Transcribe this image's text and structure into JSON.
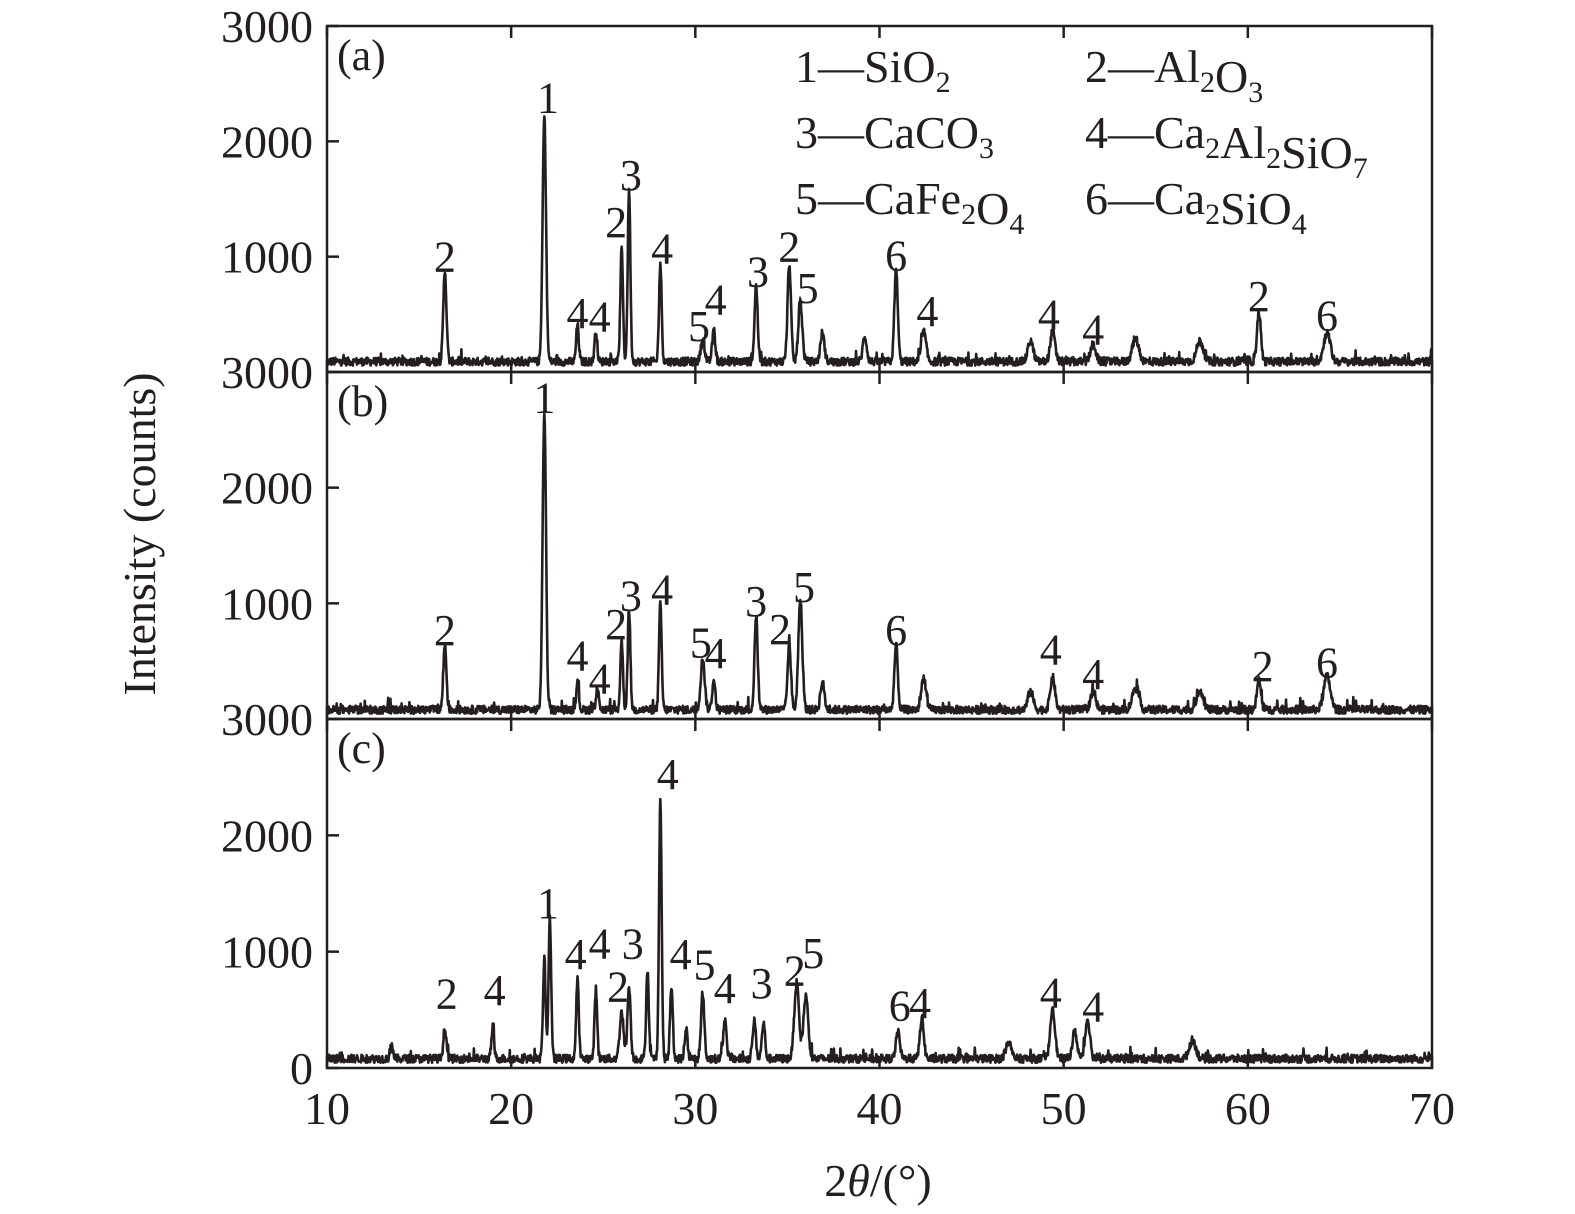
{
  "chart_data": {
    "type": "line",
    "xlabel_prefix": "2",
    "xlabel_theta": "θ",
    "xlabel_suffix": "/(°)",
    "ylabel": "Intensity (counts)",
    "xlim": [
      10,
      70
    ],
    "xticks": [
      "10",
      "20",
      "30",
      "40",
      "50",
      "60",
      "70"
    ],
    "legend": [
      {
        "num": "1",
        "dash": "—",
        "parts": [
          {
            "t": "SiO"
          },
          {
            "t": "2",
            "sub": true
          }
        ]
      },
      {
        "num": "2",
        "dash": "—",
        "parts": [
          {
            "t": "Al"
          },
          {
            "t": "2",
            "sub": true
          },
          {
            "t": "O"
          },
          {
            "t": "3",
            "sub": true
          }
        ]
      },
      {
        "num": "3",
        "dash": "—",
        "parts": [
          {
            "t": "CaCO"
          },
          {
            "t": "3",
            "sub": true
          }
        ]
      },
      {
        "num": "4",
        "dash": "—",
        "parts": [
          {
            "t": "Ca"
          },
          {
            "t": "2",
            "sub": true
          },
          {
            "t": "Al"
          },
          {
            "t": "2",
            "sub": true
          },
          {
            "t": "SiO"
          },
          {
            "t": "7",
            "sub": true
          }
        ]
      },
      {
        "num": "5",
        "dash": "—",
        "parts": [
          {
            "t": "CaFe"
          },
          {
            "t": "2",
            "sub": true
          },
          {
            "t": "O"
          },
          {
            "t": "4",
            "sub": true
          }
        ]
      },
      {
        "num": "6",
        "dash": "—",
        "parts": [
          {
            "t": "Ca"
          },
          {
            "t": "2",
            "sub": true
          },
          {
            "t": "SiO"
          },
          {
            "t": "4",
            "sub": true
          }
        ]
      }
    ],
    "panels": [
      {
        "label": "(a)",
        "ylim": [
          0,
          3000
        ],
        "yticks": [
          {
            "value": 1000,
            "label": "1000"
          },
          {
            "value": 2000,
            "label": "2000"
          },
          {
            "value": 3000,
            "label": "3000"
          }
        ],
        "baseline": 90,
        "peaks": [
          {
            "x": 16.4,
            "y": 790,
            "w": 0.12
          },
          {
            "x": 21.8,
            "y": 2130,
            "w": 0.13
          },
          {
            "x": 23.6,
            "y": 320,
            "w": 0.1
          },
          {
            "x": 24.6,
            "y": 270,
            "w": 0.1
          },
          {
            "x": 26.0,
            "y": 980,
            "w": 0.1
          },
          {
            "x": 26.4,
            "y": 1500,
            "w": 0.1
          },
          {
            "x": 28.1,
            "y": 850,
            "w": 0.1
          },
          {
            "x": 30.4,
            "y": 180,
            "w": 0.15
          },
          {
            "x": 31.0,
            "y": 260,
            "w": 0.12
          },
          {
            "x": 33.3,
            "y": 660,
            "w": 0.12
          },
          {
            "x": 35.1,
            "y": 850,
            "w": 0.13
          },
          {
            "x": 35.7,
            "y": 520,
            "w": 0.15
          },
          {
            "x": 36.9,
            "y": 250,
            "w": 0.15
          },
          {
            "x": 39.2,
            "y": 220,
            "w": 0.15
          },
          {
            "x": 40.9,
            "y": 800,
            "w": 0.13
          },
          {
            "x": 42.4,
            "y": 260,
            "w": 0.18
          },
          {
            "x": 48.2,
            "y": 180,
            "w": 0.2
          },
          {
            "x": 49.4,
            "y": 260,
            "w": 0.18
          },
          {
            "x": 51.6,
            "y": 150,
            "w": 0.2
          },
          {
            "x": 53.9,
            "y": 200,
            "w": 0.25
          },
          {
            "x": 57.4,
            "y": 180,
            "w": 0.25
          },
          {
            "x": 60.6,
            "y": 430,
            "w": 0.15
          },
          {
            "x": 64.3,
            "y": 250,
            "w": 0.25
          }
        ],
        "annotations": [
          {
            "text": "2",
            "x": 16.4,
            "y": 870
          },
          {
            "text": "1",
            "x": 22.0,
            "y": 2250
          },
          {
            "text": "4",
            "x": 23.6,
            "y": 380
          },
          {
            "text": "4",
            "x": 24.8,
            "y": 350
          },
          {
            "text": "2",
            "x": 25.7,
            "y": 1170
          },
          {
            "text": "3",
            "x": 26.5,
            "y": 1580
          },
          {
            "text": "4",
            "x": 28.2,
            "y": 940
          },
          {
            "text": "5",
            "x": 30.2,
            "y": 270
          },
          {
            "text": "4",
            "x": 31.1,
            "y": 500
          },
          {
            "text": "3",
            "x": 33.4,
            "y": 740
          },
          {
            "text": "2",
            "x": 35.1,
            "y": 960
          },
          {
            "text": "5",
            "x": 36.1,
            "y": 600
          },
          {
            "text": "6",
            "x": 40.9,
            "y": 880
          },
          {
            "text": "4",
            "x": 42.6,
            "y": 400
          },
          {
            "text": "4",
            "x": 49.2,
            "y": 370
          },
          {
            "text": "4",
            "x": 51.6,
            "y": 240
          },
          {
            "text": "2",
            "x": 60.6,
            "y": 530
          },
          {
            "text": "6",
            "x": 64.3,
            "y": 360
          }
        ]
      },
      {
        "label": "(b)",
        "ylim": [
          0,
          3000
        ],
        "yticks": [
          {
            "value": 1000,
            "label": "1000"
          },
          {
            "value": 2000,
            "label": "2000"
          },
          {
            "value": 3000,
            "label": "3000"
          }
        ],
        "baseline": 80,
        "peaks": [
          {
            "x": 16.4,
            "y": 560,
            "w": 0.12
          },
          {
            "x": 21.8,
            "y": 2580,
            "w": 0.13
          },
          {
            "x": 23.6,
            "y": 250,
            "w": 0.1
          },
          {
            "x": 24.7,
            "y": 200,
            "w": 0.1
          },
          {
            "x": 26.0,
            "y": 600,
            "w": 0.1
          },
          {
            "x": 26.4,
            "y": 870,
            "w": 0.1
          },
          {
            "x": 28.1,
            "y": 920,
            "w": 0.1
          },
          {
            "x": 30.4,
            "y": 450,
            "w": 0.15
          },
          {
            "x": 31.0,
            "y": 250,
            "w": 0.12
          },
          {
            "x": 33.3,
            "y": 820,
            "w": 0.12
          },
          {
            "x": 35.1,
            "y": 560,
            "w": 0.13
          },
          {
            "x": 35.7,
            "y": 940,
            "w": 0.15
          },
          {
            "x": 36.9,
            "y": 240,
            "w": 0.15
          },
          {
            "x": 40.9,
            "y": 560,
            "w": 0.13
          },
          {
            "x": 42.4,
            "y": 280,
            "w": 0.18
          },
          {
            "x": 48.2,
            "y": 160,
            "w": 0.2
          },
          {
            "x": 49.4,
            "y": 280,
            "w": 0.18
          },
          {
            "x": 51.6,
            "y": 150,
            "w": 0.2
          },
          {
            "x": 53.9,
            "y": 190,
            "w": 0.25
          },
          {
            "x": 57.4,
            "y": 170,
            "w": 0.25
          },
          {
            "x": 60.6,
            "y": 260,
            "w": 0.15
          },
          {
            "x": 64.3,
            "y": 290,
            "w": 0.25
          }
        ],
        "annotations": [
          {
            "text": "2",
            "x": 16.4,
            "y": 640
          },
          {
            "text": "1",
            "x": 21.8,
            "y": 2650
          },
          {
            "text": "4",
            "x": 23.6,
            "y": 420
          },
          {
            "text": "4",
            "x": 24.8,
            "y": 220
          },
          {
            "text": "2",
            "x": 25.7,
            "y": 690
          },
          {
            "text": "3",
            "x": 26.5,
            "y": 940
          },
          {
            "text": "4",
            "x": 28.2,
            "y": 990
          },
          {
            "text": "5",
            "x": 30.3,
            "y": 530
          },
          {
            "text": "4",
            "x": 31.1,
            "y": 440
          },
          {
            "text": "3",
            "x": 33.3,
            "y": 890
          },
          {
            "text": "2",
            "x": 34.6,
            "y": 650
          },
          {
            "text": "5",
            "x": 35.9,
            "y": 1010
          },
          {
            "text": "6",
            "x": 40.9,
            "y": 640
          },
          {
            "text": "4",
            "x": 49.3,
            "y": 470
          },
          {
            "text": "4",
            "x": 51.6,
            "y": 260
          },
          {
            "text": "2",
            "x": 60.8,
            "y": 330
          },
          {
            "text": "6",
            "x": 64.3,
            "y": 360
          }
        ]
      },
      {
        "label": "(c)",
        "ylim": [
          0,
          3000
        ],
        "yticks": [
          {
            "value": 0,
            "label": "0"
          },
          {
            "value": 1000,
            "label": "1000"
          },
          {
            "value": 2000,
            "label": "2000"
          },
          {
            "value": 3000,
            "label": "3000"
          }
        ],
        "baseline": 80,
        "peaks": [
          {
            "x": 13.5,
            "y": 140,
            "w": 0.1
          },
          {
            "x": 16.4,
            "y": 260,
            "w": 0.12
          },
          {
            "x": 19.0,
            "y": 270,
            "w": 0.1
          },
          {
            "x": 21.8,
            "y": 850,
            "w": 0.1
          },
          {
            "x": 22.1,
            "y": 1210,
            "w": 0.1
          },
          {
            "x": 23.6,
            "y": 680,
            "w": 0.1
          },
          {
            "x": 24.6,
            "y": 600,
            "w": 0.1
          },
          {
            "x": 26.0,
            "y": 400,
            "w": 0.15
          },
          {
            "x": 26.4,
            "y": 620,
            "w": 0.12
          },
          {
            "x": 27.4,
            "y": 770,
            "w": 0.1
          },
          {
            "x": 28.1,
            "y": 2230,
            "w": 0.1
          },
          {
            "x": 28.7,
            "y": 620,
            "w": 0.1
          },
          {
            "x": 29.5,
            "y": 270,
            "w": 0.1
          },
          {
            "x": 30.4,
            "y": 570,
            "w": 0.12
          },
          {
            "x": 31.6,
            "y": 330,
            "w": 0.13
          },
          {
            "x": 33.2,
            "y": 330,
            "w": 0.12
          },
          {
            "x": 33.7,
            "y": 310,
            "w": 0.12
          },
          {
            "x": 35.5,
            "y": 650,
            "w": 0.18
          },
          {
            "x": 36.0,
            "y": 540,
            "w": 0.18
          },
          {
            "x": 41.0,
            "y": 230,
            "w": 0.15
          },
          {
            "x": 42.3,
            "y": 350,
            "w": 0.15
          },
          {
            "x": 47.0,
            "y": 150,
            "w": 0.2
          },
          {
            "x": 49.4,
            "y": 440,
            "w": 0.18
          },
          {
            "x": 50.6,
            "y": 230,
            "w": 0.18
          },
          {
            "x": 51.3,
            "y": 340,
            "w": 0.18
          },
          {
            "x": 57.0,
            "y": 160,
            "w": 0.25
          }
        ],
        "annotations": [
          {
            "text": "2",
            "x": 16.5,
            "y": 510
          },
          {
            "text": "4",
            "x": 19.1,
            "y": 540
          },
          {
            "text": "1",
            "x": 22.0,
            "y": 1290
          },
          {
            "text": "4",
            "x": 23.5,
            "y": 850
          },
          {
            "text": "4",
            "x": 24.8,
            "y": 940
          },
          {
            "text": "3",
            "x": 26.6,
            "y": 940
          },
          {
            "text": "2",
            "x": 25.8,
            "y": 570
          },
          {
            "text": "4",
            "x": 28.5,
            "y": 2400
          },
          {
            "text": "4",
            "x": 29.2,
            "y": 850
          },
          {
            "text": "5",
            "x": 30.5,
            "y": 760
          },
          {
            "text": "4",
            "x": 31.6,
            "y": 560
          },
          {
            "text": "3",
            "x": 33.6,
            "y": 600
          },
          {
            "text": "2",
            "x": 35.4,
            "y": 710
          },
          {
            "text": "5",
            "x": 36.4,
            "y": 860
          },
          {
            "text": "6",
            "x": 41.1,
            "y": 410
          },
          {
            "text": "4",
            "x": 42.2,
            "y": 430
          },
          {
            "text": "4",
            "x": 49.3,
            "y": 520
          },
          {
            "text": "4",
            "x": 51.6,
            "y": 400
          }
        ]
      }
    ]
  }
}
